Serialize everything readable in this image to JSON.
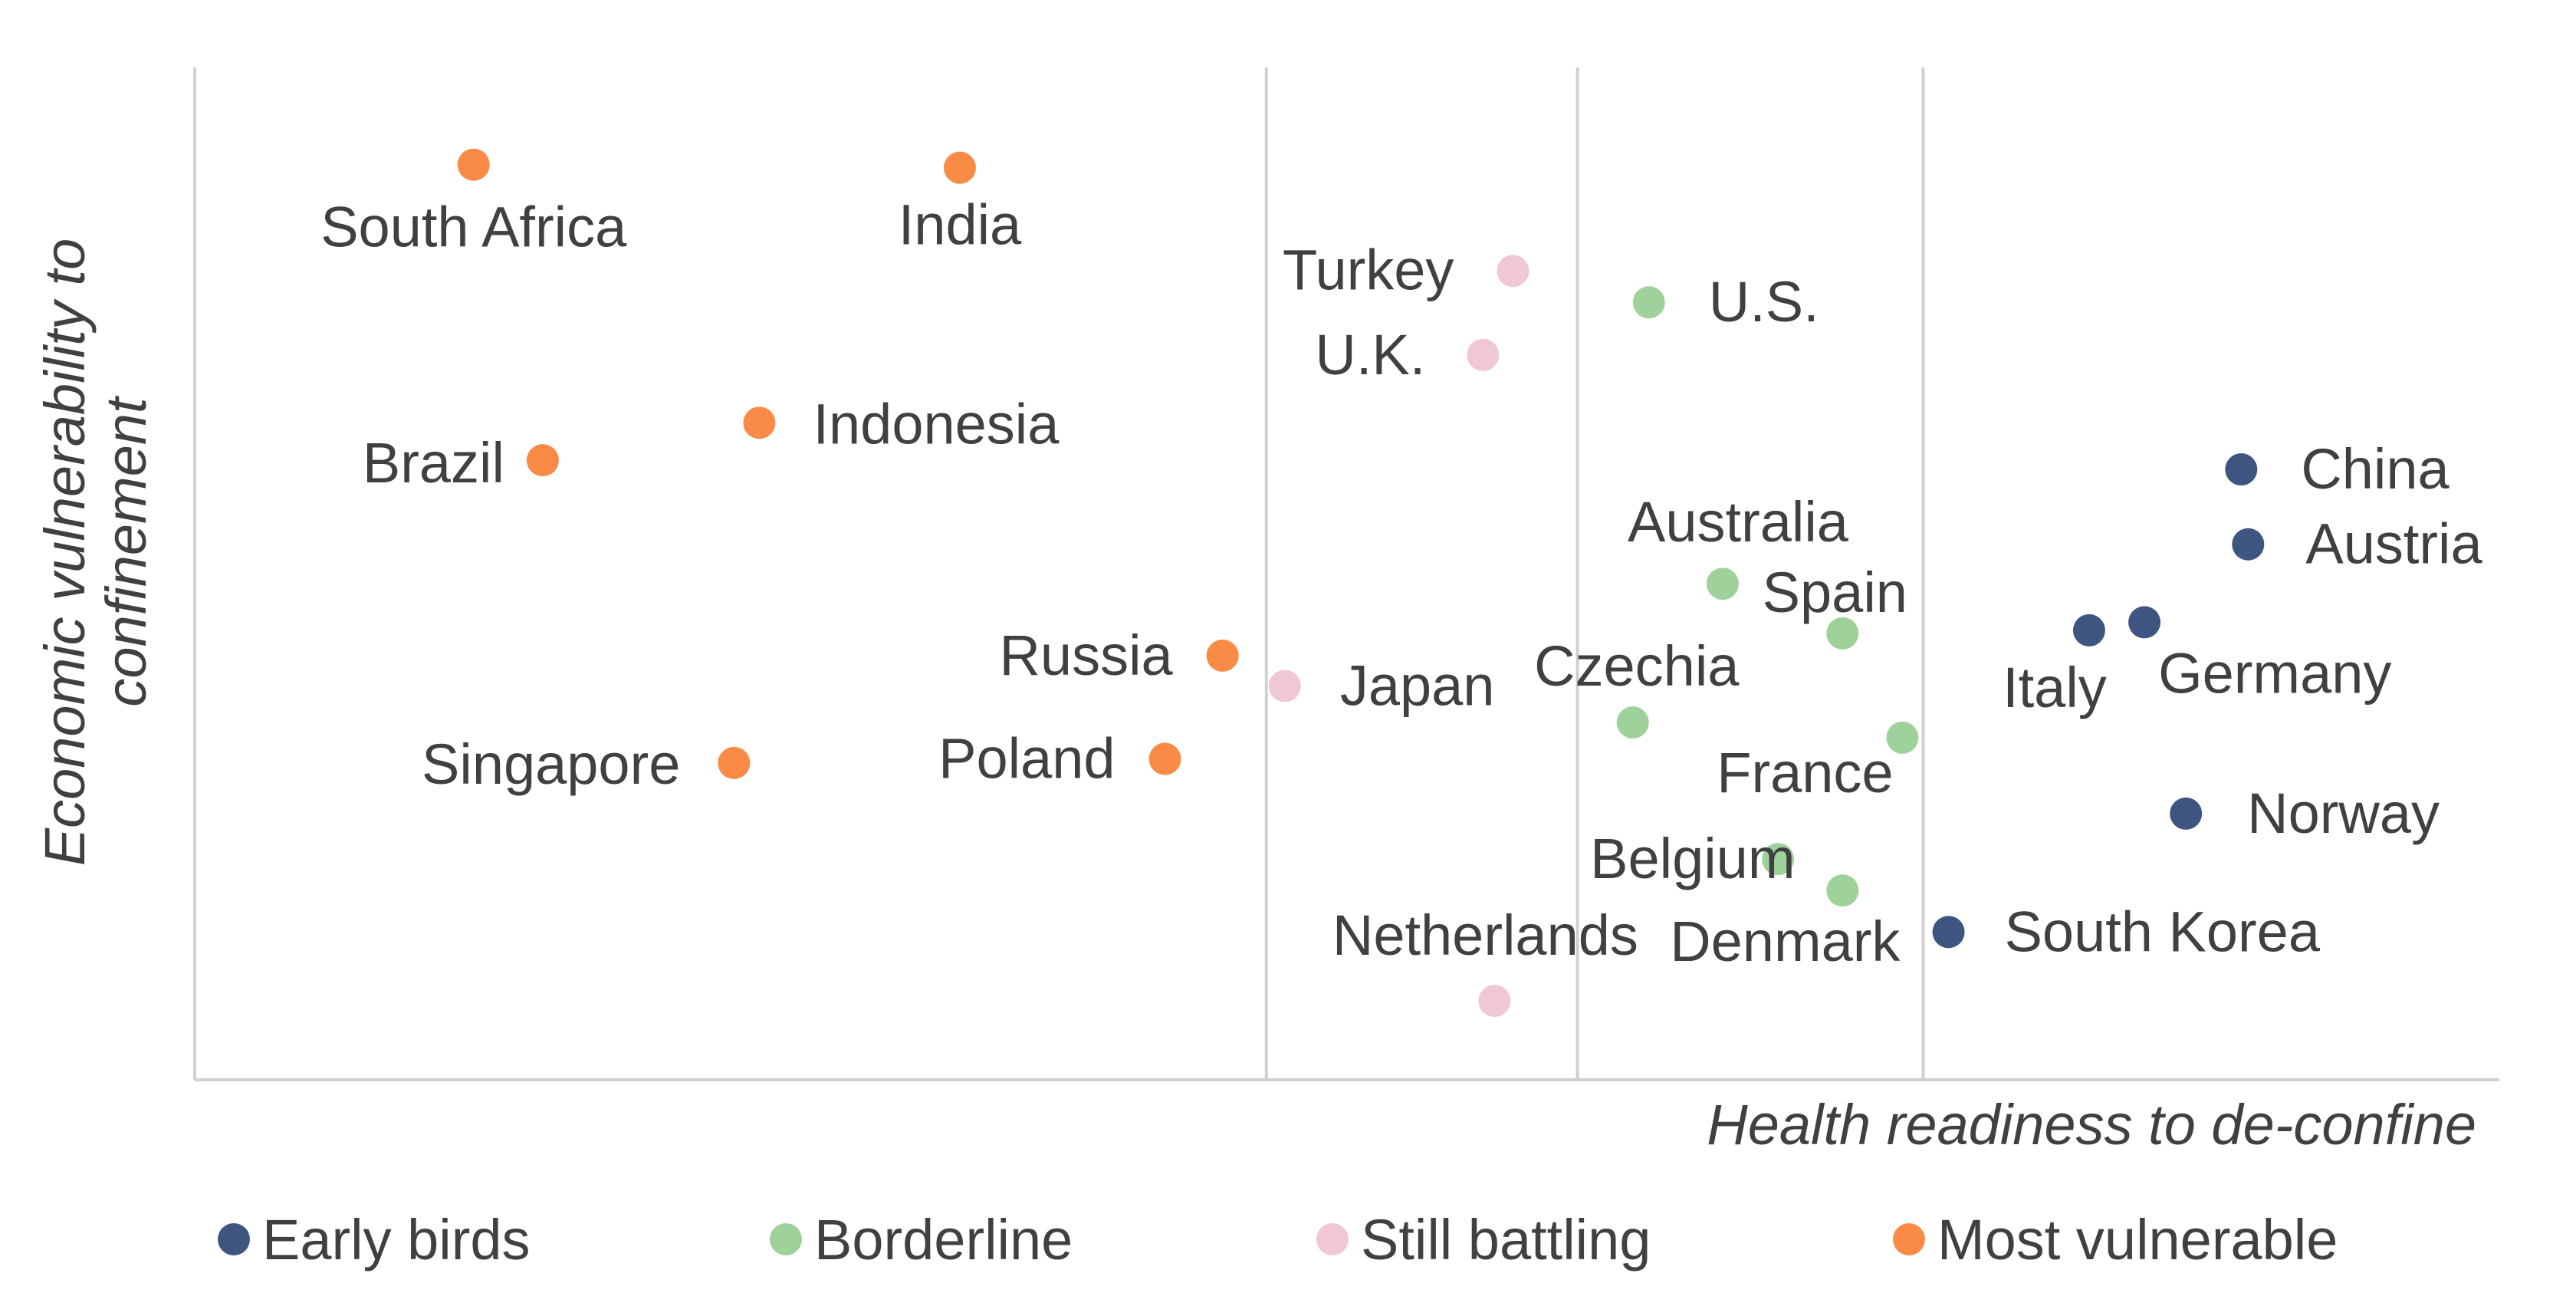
{
  "chart_data": {
    "type": "scatter",
    "xlabel": "Health readiness to de-confine",
    "ylabel": "Economic vulnerability to confinement",
    "xlim": [
      0,
      100
    ],
    "ylim": [
      0,
      100
    ],
    "grid": "vertical",
    "legend_position": "bottom",
    "x_gridlines": [
      46.5,
      60,
      75
    ],
    "series": [
      {
        "name": "Early birds",
        "color": "#3d5580",
        "points": [
          {
            "label": "China",
            "x": 88.8,
            "y": 60.3
          },
          {
            "label": "Austria",
            "x": 89.1,
            "y": 52.9
          },
          {
            "label": "Italy",
            "x": 82.2,
            "y": 44.4
          },
          {
            "label": "Germany",
            "x": 84.6,
            "y": 45.2
          },
          {
            "label": "Norway",
            "x": 86.4,
            "y": 26.3
          },
          {
            "label": "South Korea",
            "x": 76.1,
            "y": 14.6
          }
        ]
      },
      {
        "name": "Borderline",
        "color": "#9fd29a",
        "points": [
          {
            "label": "U.S.",
            "x": 63.1,
            "y": 76.8
          },
          {
            "label": "Australia",
            "x": 66.3,
            "y": 49.0
          },
          {
            "label": "Spain",
            "x": 71.5,
            "y": 44.1
          },
          {
            "label": "Czechia",
            "x": 62.4,
            "y": 35.3
          },
          {
            "label": "France",
            "x": 74.1,
            "y": 33.8
          },
          {
            "label": "Belgium",
            "x": 68.7,
            "y": 21.8
          },
          {
            "label": "Denmark",
            "x": 71.5,
            "y": 18.7
          }
        ]
      },
      {
        "name": "Still battling",
        "color": "#f0c8d5",
        "points": [
          {
            "label": "Turkey",
            "x": 57.2,
            "y": 79.9
          },
          {
            "label": "U.K.",
            "x": 55.9,
            "y": 71.6
          },
          {
            "label": "Japan",
            "x": 47.3,
            "y": 38.9
          },
          {
            "label": "Netherlands",
            "x": 56.4,
            "y": 7.8
          }
        ]
      },
      {
        "name": "Most vulnerable",
        "color": "#f98b46",
        "points": [
          {
            "label": "South Africa",
            "x": 12.1,
            "y": 90.4
          },
          {
            "label": "India",
            "x": 33.2,
            "y": 90.1
          },
          {
            "label": "Brazil",
            "x": 15.1,
            "y": 61.2
          },
          {
            "label": "Indonesia",
            "x": 24.5,
            "y": 64.9
          },
          {
            "label": "Russia",
            "x": 44.6,
            "y": 41.9
          },
          {
            "label": "Singapore",
            "x": 23.4,
            "y": 31.3
          },
          {
            "label": "Poland",
            "x": 42.1,
            "y": 31.7
          }
        ]
      }
    ]
  }
}
